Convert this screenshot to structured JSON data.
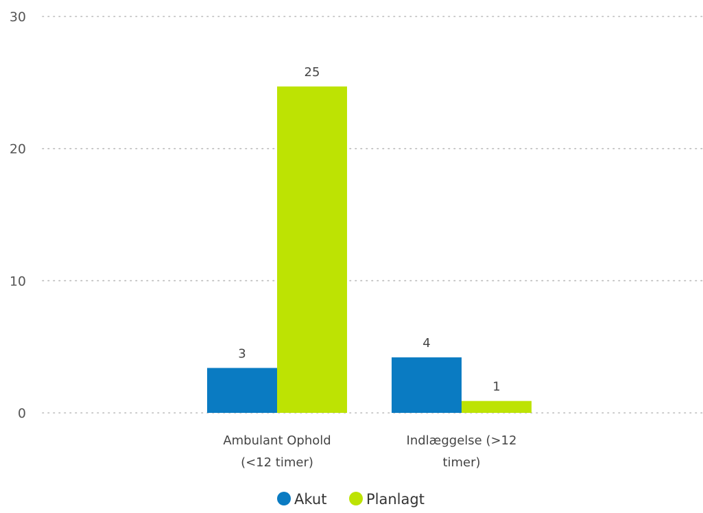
{
  "chart_data": {
    "type": "bar",
    "title": "",
    "xlabel": "",
    "ylabel": "",
    "categories": [
      "Ambulant Ophold (<12 timer)",
      "Indlæggelse (>12 timer)"
    ],
    "category_lines": [
      [
        "Ambulant Ophold",
        "(<12 timer)"
      ],
      [
        "Indlæggelse (>12",
        "timer)"
      ]
    ],
    "series": [
      {
        "name": "Akut",
        "values": [
          3,
          4
        ],
        "color": "#0a7bc2"
      },
      {
        "name": "Planlagt",
        "values": [
          25,
          1
        ],
        "color": "#bde303"
      }
    ],
    "bar_values": [
      [
        3.4,
        4.2
      ],
      [
        24.7,
        0.9
      ]
    ],
    "data_labels": [
      [
        "3",
        "4"
      ],
      [
        "25",
        "1"
      ]
    ],
    "ylim": [
      0,
      30
    ],
    "yticks": [
      0,
      10,
      20,
      30
    ],
    "ytick_labels": [
      "0",
      "10",
      "20",
      "30"
    ],
    "grid": true,
    "legend_position": "bottom-center"
  }
}
